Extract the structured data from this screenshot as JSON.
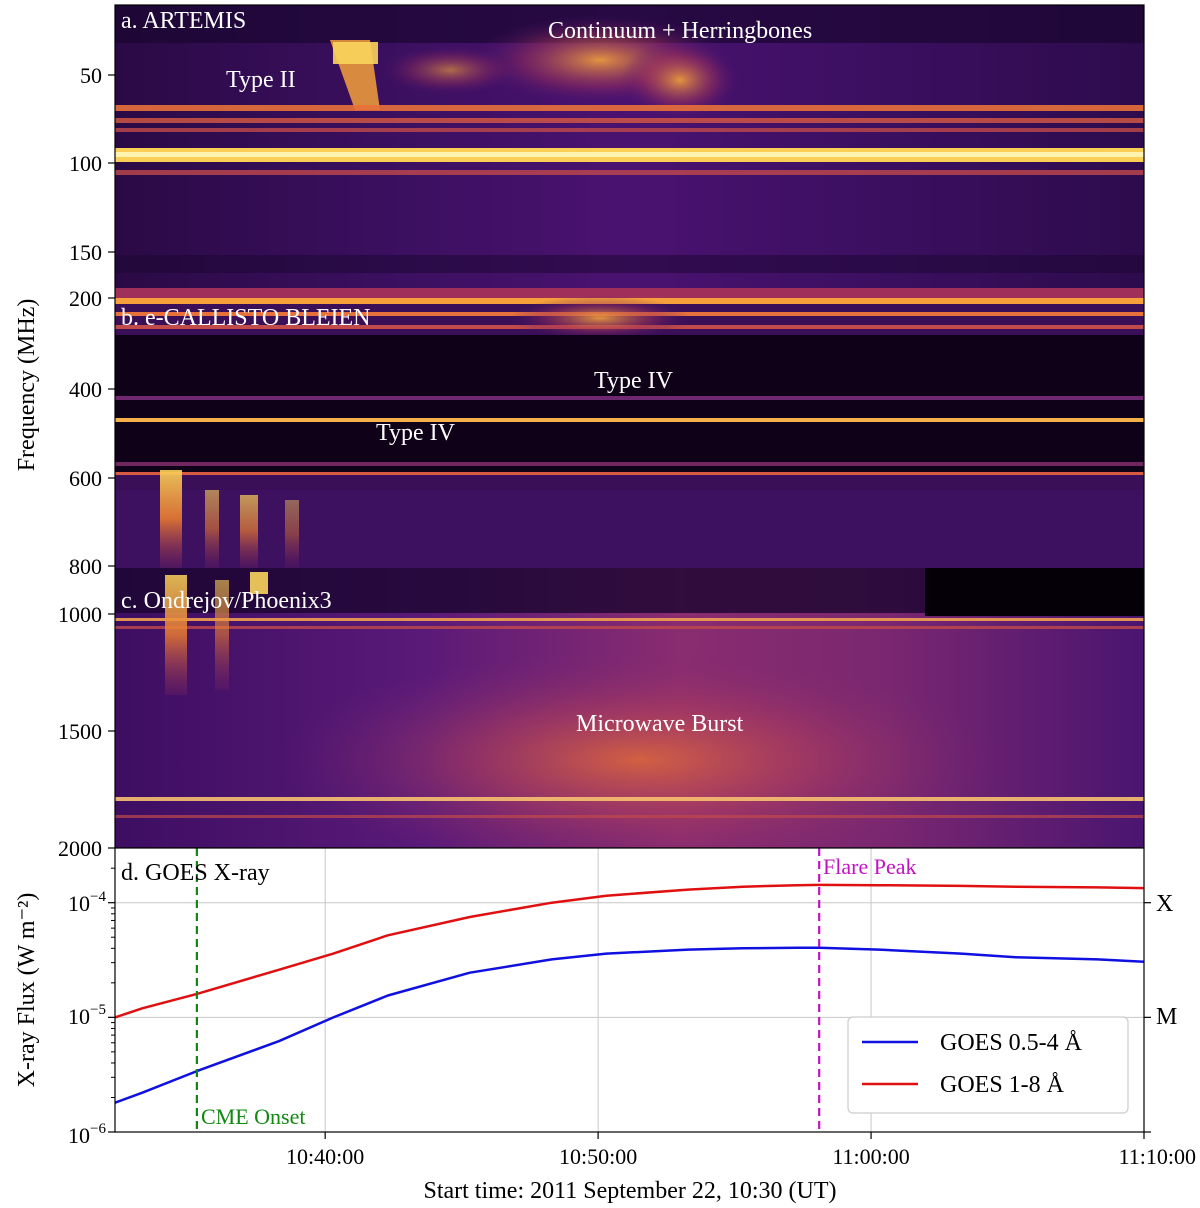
{
  "figure": {
    "ylabel_top": "Frequency (MHz)",
    "xlabel": "Start time: 2011 September 22, 10:30 (UT)"
  },
  "panels": [
    {
      "label": "a. ARTEMIS",
      "freq_range_mhz": [
        20,
        180
      ],
      "yticks": [
        "50",
        "100",
        "150"
      ],
      "annotations": [
        "Type II",
        "Continuum + Herringbones"
      ]
    },
    {
      "label": "b. e-CALLISTO BLEIEN",
      "freq_range_mhz": [
        180,
        870
      ],
      "yticks": [
        "200",
        "400",
        "600",
        "800"
      ],
      "annotations": [
        "Type IV",
        "Type IV"
      ]
    },
    {
      "label": "c. Ondrejov/Phoenix3",
      "freq_range_mhz": [
        800,
        2000
      ],
      "yticks": [
        "1000",
        "1500",
        "2000"
      ],
      "annotations": [
        "Microwave Burst"
      ]
    }
  ],
  "goes_panel": {
    "label": "d. GOES X-ray",
    "ylabel": "X-ray Flux (W m⁻²)",
    "ytick_bases": [
      "10",
      "10",
      "10"
    ],
    "ytick_exponents": [
      "−6",
      "−5",
      "−4"
    ],
    "class_labels": [
      "M",
      "X"
    ],
    "vlines": [
      {
        "label": "CME Onset",
        "time_min": 5.3,
        "color": "#118811"
      },
      {
        "label": "Flare Peak",
        "time_min": 28.1,
        "color": "#c014c0"
      }
    ],
    "legend": [
      "GOES 0.5-4 Å",
      "GOES 1-8 Å"
    ]
  },
  "chart_data": {
    "type": "line",
    "title": "d. GOES X-ray",
    "xlabel": "Start time: 2011 September 22, 10:30 (UT)",
    "ylabel": "X-ray Flux (W m⁻²)",
    "yscale": "log",
    "xlim_min": [
      2.3,
      40
    ],
    "ylim": [
      1e-06,
      0.0003
    ],
    "xticks": [
      "10:40:00",
      "10:50:00",
      "11:00:00",
      "11:10:00"
    ],
    "xtick_values_min": [
      10,
      20,
      30,
      40
    ],
    "x_min": [
      2.3,
      3.3,
      5.3,
      8.3,
      10.3,
      12.3,
      15.3,
      18.3,
      20.3,
      23.3,
      25.3,
      27.3,
      28.1,
      30.3,
      33.3,
      35.3,
      38.3,
      40.0
    ],
    "series": [
      {
        "name": "GOES 0.5-4 Å",
        "color": "#1010e0",
        "values": [
          1.8e-06,
          2.2e-06,
          3.4e-06,
          6.2e-06,
          1e-05,
          1.55e-05,
          2.45e-05,
          3.2e-05,
          3.6e-05,
          3.9e-05,
          4e-05,
          4.05e-05,
          4.05e-05,
          3.9e-05,
          3.6e-05,
          3.35e-05,
          3.2e-05,
          3.05e-05
        ]
      },
      {
        "name": "GOES 1-8 Å",
        "color": "#e01010",
        "values": [
          1e-05,
          1.2e-05,
          1.6e-05,
          2.6e-05,
          3.6e-05,
          5.2e-05,
          7.5e-05,
          0.0001,
          0.000115,
          0.00013,
          0.000138,
          0.000142,
          0.000143,
          0.000142,
          0.00014,
          0.000138,
          0.000136,
          0.000134
        ]
      }
    ]
  }
}
